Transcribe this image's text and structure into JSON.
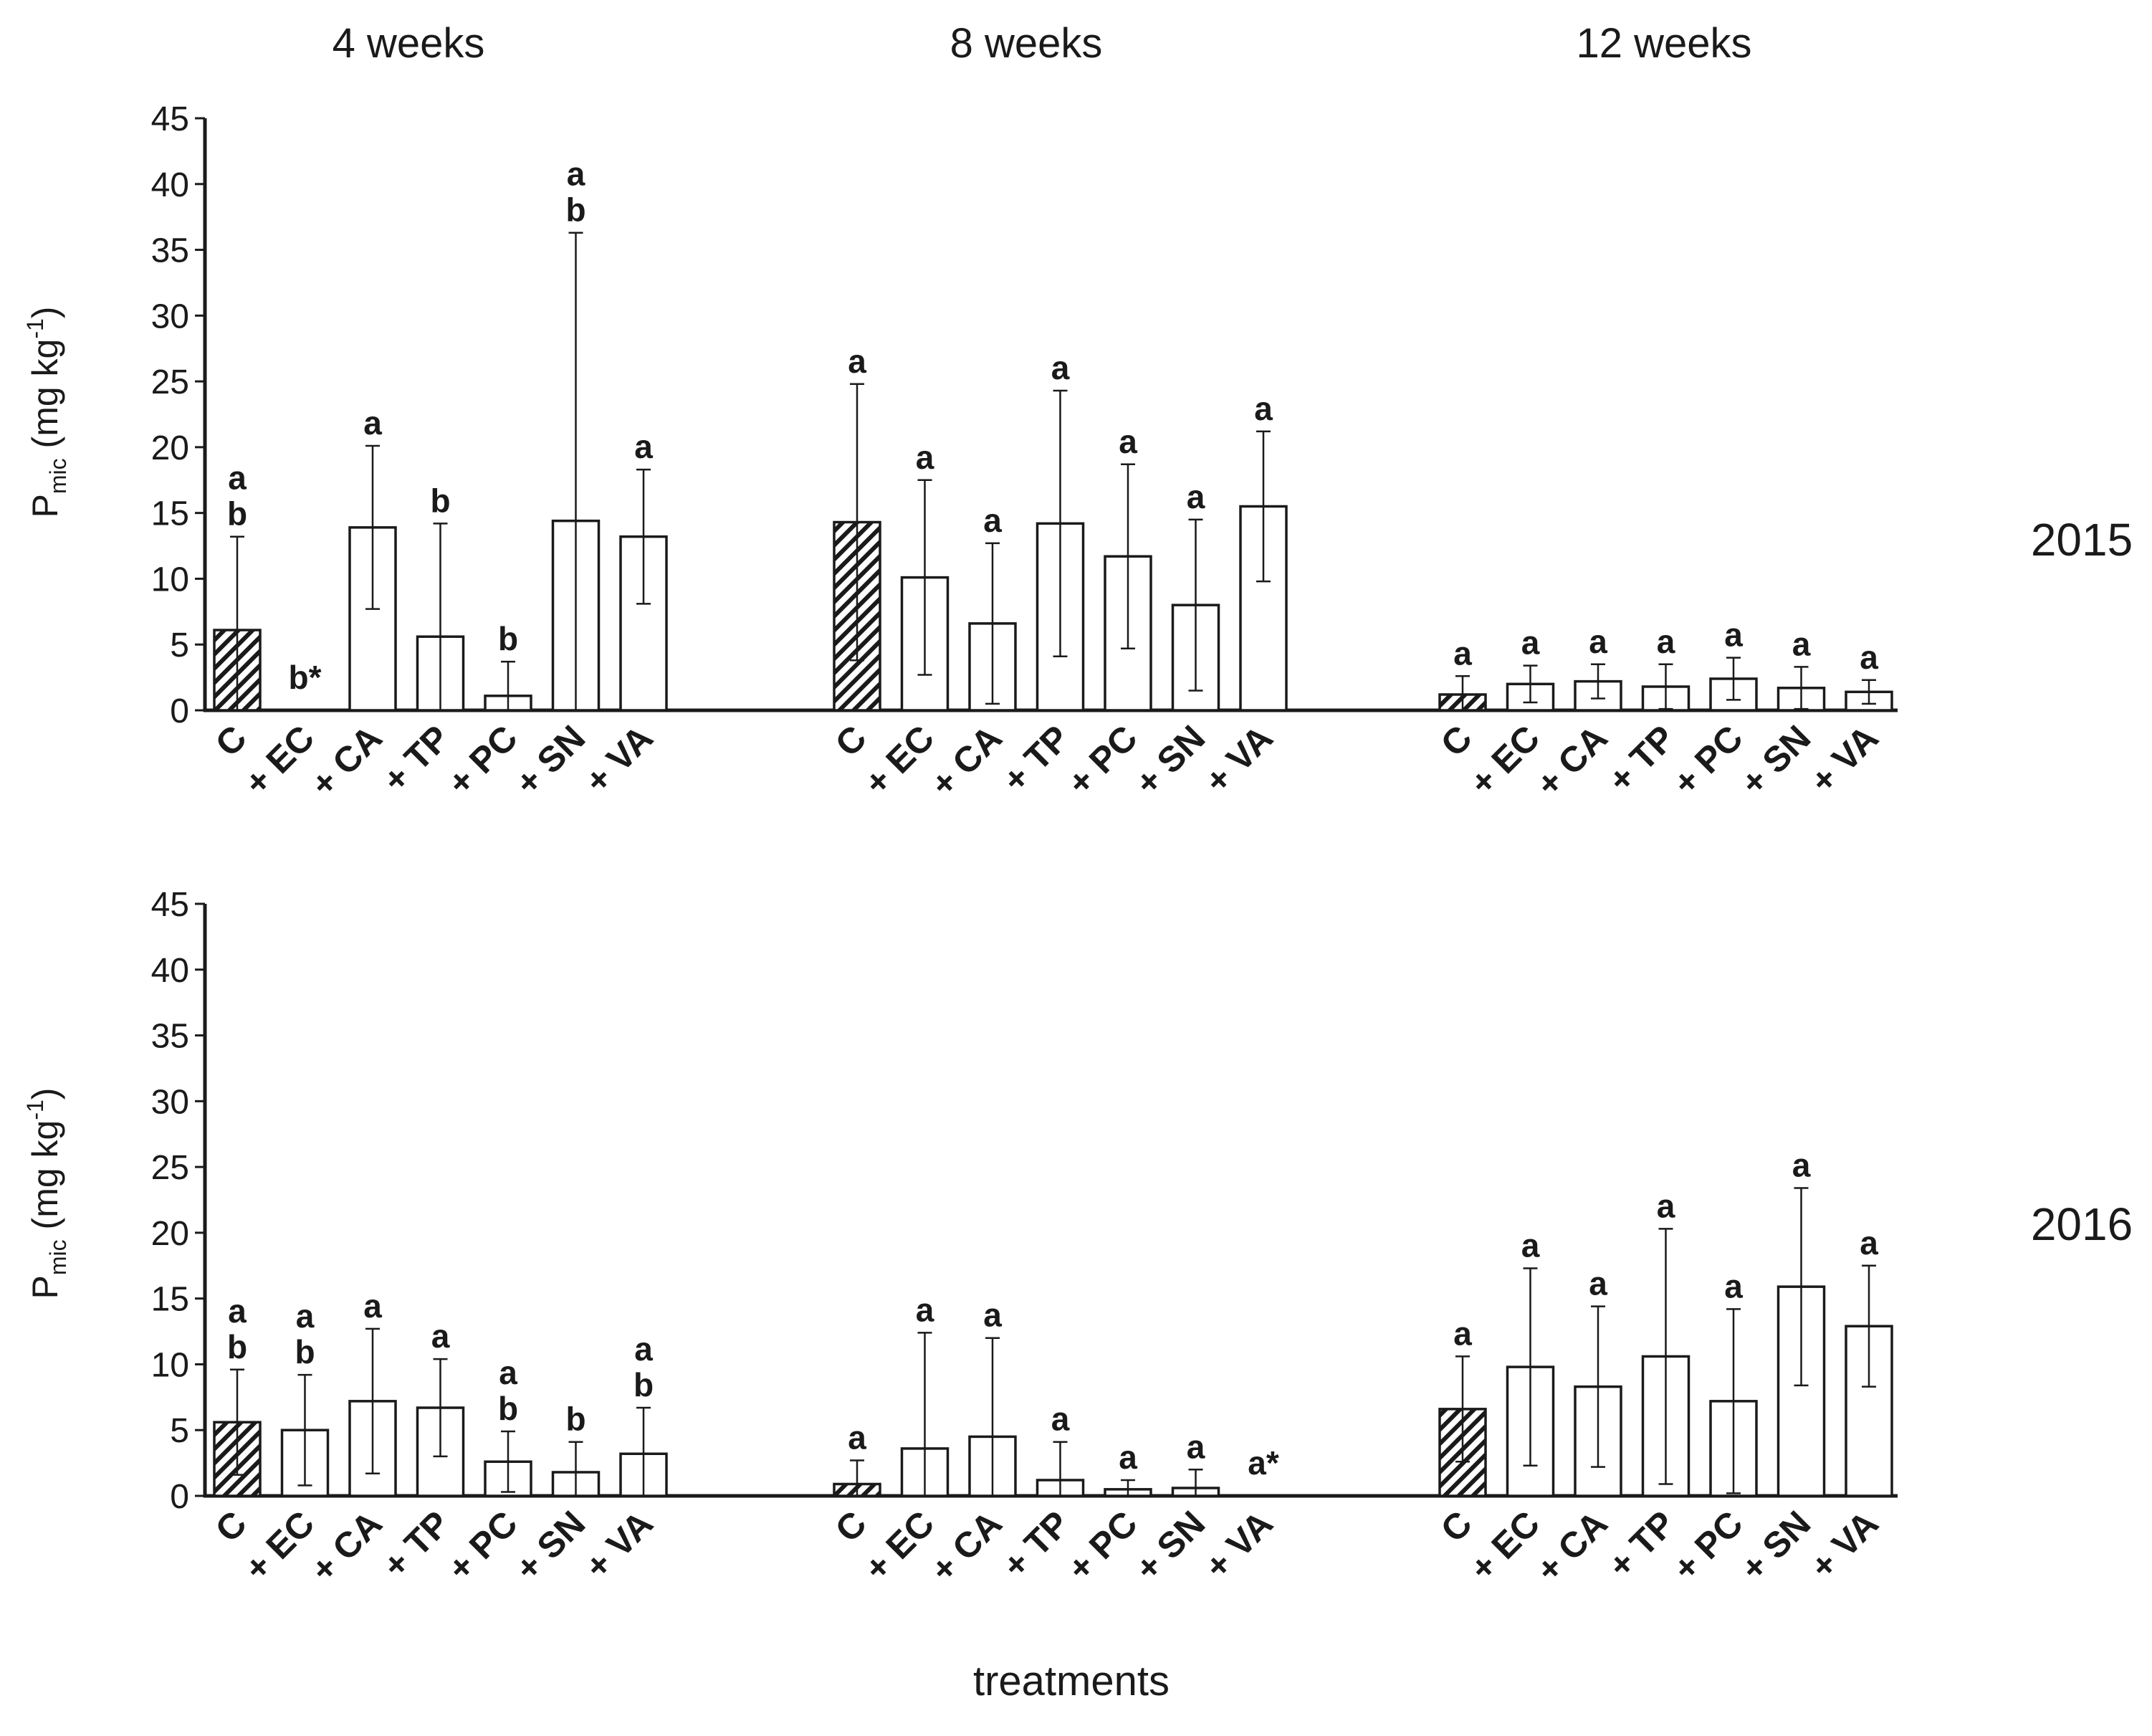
{
  "chart_data": {
    "type": "bar",
    "xlabel": "treatments",
    "ylabel": {
      "main": "P",
      "subscript": "mic",
      "unit_open": " (mg kg",
      "unit_sup": "-1",
      "unit_close": ")"
    },
    "ylim": [
      0,
      45
    ],
    "yticks": [
      "0",
      "5",
      "10",
      "15",
      "20",
      "25",
      "30",
      "35",
      "40",
      "45"
    ],
    "periods": [
      "4 weeks",
      "8 weeks",
      "12 weeks"
    ],
    "categories": [
      "C",
      "+ EC",
      "+ CA",
      "+ TP",
      "+ PC",
      "+ SN",
      "+ VA"
    ],
    "control_pattern": "hatched",
    "panels": [
      {
        "year": "2015",
        "groups": [
          {
            "period": "4 weeks",
            "values": [
              6.1,
              0,
              13.9,
              5.6,
              1.1,
              14.4,
              13.2
            ],
            "errors": [
              7.1,
              0,
              6.2,
              8.6,
              2.6,
              21.9,
              5.1
            ],
            "letters": [
              [
                "a",
                "b"
              ],
              [
                "b*"
              ],
              [
                "a"
              ],
              [
                "b"
              ],
              [
                "b"
              ],
              [
                "a",
                "b"
              ],
              [
                "a"
              ]
            ]
          },
          {
            "period": "8 weeks",
            "values": [
              14.3,
              10.1,
              6.6,
              14.2,
              11.7,
              8.0,
              15.5
            ],
            "errors": [
              10.5,
              7.4,
              6.1,
              10.1,
              7.0,
              6.5,
              5.7
            ],
            "letters": [
              [
                "a"
              ],
              [
                "a"
              ],
              [
                "a"
              ],
              [
                "a"
              ],
              [
                "a"
              ],
              [
                "a"
              ],
              [
                "a"
              ]
            ]
          },
          {
            "period": "12 weeks",
            "values": [
              1.2,
              2.0,
              2.2,
              1.8,
              2.4,
              1.7,
              1.4
            ],
            "errors": [
              1.4,
              1.4,
              1.3,
              1.7,
              1.6,
              1.6,
              0.9
            ],
            "letters": [
              [
                "a"
              ],
              [
                "a"
              ],
              [
                "a"
              ],
              [
                "a"
              ],
              [
                "a"
              ],
              [
                "a"
              ],
              [
                "a"
              ]
            ]
          }
        ]
      },
      {
        "year": "2016",
        "groups": [
          {
            "period": "4 weeks",
            "values": [
              5.6,
              5.0,
              7.2,
              6.7,
              2.6,
              1.8,
              3.2
            ],
            "errors": [
              4.0,
              4.2,
              5.5,
              3.7,
              2.3,
              2.3,
              3.5
            ],
            "letters": [
              [
                "a",
                "b"
              ],
              [
                "a",
                "b"
              ],
              [
                "a"
              ],
              [
                "a"
              ],
              [
                "a",
                "b"
              ],
              [
                "b"
              ],
              [
                "a",
                "b"
              ]
            ]
          },
          {
            "period": "8 weeks",
            "values": [
              0.9,
              3.6,
              4.5,
              1.2,
              0.5,
              0.6,
              0
            ],
            "errors": [
              1.8,
              8.8,
              7.5,
              2.9,
              0.7,
              1.4,
              0
            ],
            "letters": [
              [
                "a"
              ],
              [
                "a"
              ],
              [
                "a"
              ],
              [
                "a"
              ],
              [
                "a"
              ],
              [
                "a"
              ],
              [
                "a*"
              ]
            ]
          },
          {
            "period": "12 weeks",
            "values": [
              6.6,
              9.8,
              8.3,
              10.6,
              7.2,
              15.9,
              12.9
            ],
            "errors": [
              4.0,
              7.5,
              6.1,
              9.7,
              7.0,
              7.5,
              4.6
            ],
            "letters": [
              [
                "a"
              ],
              [
                "a"
              ],
              [
                "a"
              ],
              [
                "a"
              ],
              [
                "a"
              ],
              [
                "a"
              ],
              [
                "a"
              ]
            ]
          }
        ]
      }
    ]
  }
}
